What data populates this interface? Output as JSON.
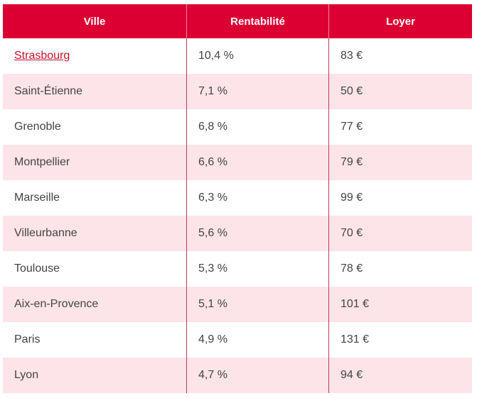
{
  "colors": {
    "header_bg": "#dc0032",
    "row_alt_bg": "#fce4e9",
    "link": "#c8102e"
  },
  "table": {
    "headers": [
      "Ville",
      "Rentabilité",
      "Loyer"
    ],
    "rows": [
      {
        "ville": "Strasbourg",
        "rentabilite": "10,4 %",
        "loyer": "83 €",
        "link": true
      },
      {
        "ville": "Saint-Étienne",
        "rentabilite": "7,1 %",
        "loyer": "50 €"
      },
      {
        "ville": "Grenoble",
        "rentabilite": "6,8 %",
        "loyer": "77 €"
      },
      {
        "ville": "Montpellier",
        "rentabilite": "6,6 %",
        "loyer": "79 €"
      },
      {
        "ville": "Marseille",
        "rentabilite": "6,3 %",
        "loyer": "99 €"
      },
      {
        "ville": "Villeurbanne",
        "rentabilite": "5,6 %",
        "loyer": "70 €"
      },
      {
        "ville": "Toulouse",
        "rentabilite": "5,3 %",
        "loyer": "78 €"
      },
      {
        "ville": "Aix-en-Provence",
        "rentabilite": "5,1 %",
        "loyer": "101 €"
      },
      {
        "ville": "Paris",
        "rentabilite": "4,9 %",
        "loyer": "131 €"
      },
      {
        "ville": "Lyon",
        "rentabilite": "4,7 %",
        "loyer": "94 €"
      }
    ]
  }
}
